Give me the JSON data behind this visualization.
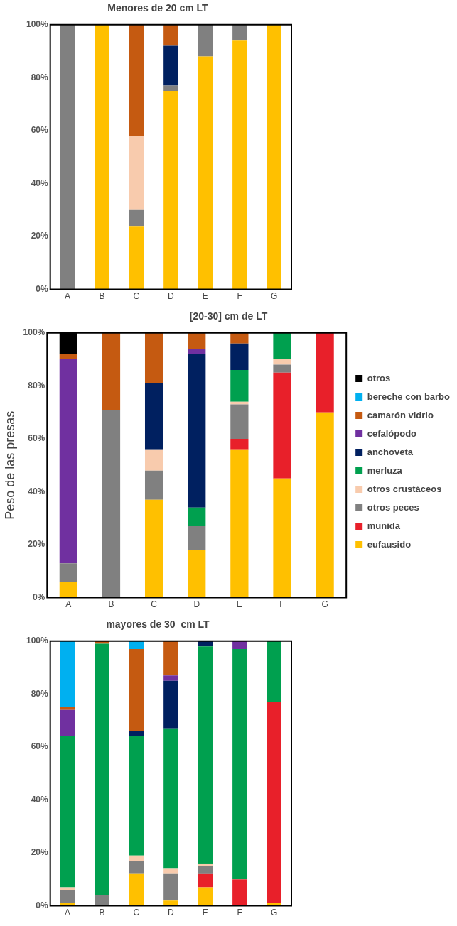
{
  "chart_data": [
    {
      "type": "bar",
      "title": "Menores de 20 cm LT",
      "stacked": true,
      "categories": [
        "A",
        "B",
        "C",
        "D",
        "E",
        "F",
        "G"
      ],
      "ylim": [
        0,
        100
      ],
      "yticks": [
        {
          "value": 0,
          "label": "0%"
        },
        {
          "value": 20,
          "label": "20%"
        },
        {
          "value": 40,
          "label": "40%"
        },
        {
          "value": 60,
          "label": "60%"
        },
        {
          "value": 80,
          "label": "80%"
        },
        {
          "value": 100,
          "label": "100%"
        }
      ],
      "grid": false,
      "legend": false,
      "series": [
        {
          "color": "#ffc000",
          "values": [
            0,
            100,
            24,
            75,
            88,
            94,
            100
          ]
        },
        {
          "color": "#e8202a",
          "values": [
            0,
            0,
            0,
            0,
            0,
            0,
            0
          ]
        },
        {
          "color": "#808080",
          "values": [
            100,
            0,
            6,
            2,
            12,
            6,
            0
          ]
        },
        {
          "color": "#f8cbad",
          "values": [
            0,
            0,
            28,
            0,
            0,
            0,
            0
          ]
        },
        {
          "color": "#00a04f",
          "values": [
            0,
            0,
            0,
            0,
            0,
            0,
            0
          ]
        },
        {
          "color": "#002060",
          "values": [
            0,
            0,
            0,
            15,
            0,
            0,
            0
          ]
        },
        {
          "color": "#7030a0",
          "values": [
            0,
            0,
            0,
            0,
            0,
            0,
            0
          ]
        },
        {
          "color": "#c55a11",
          "values": [
            0,
            0,
            42,
            8,
            0,
            0,
            0
          ]
        },
        {
          "color": "#00b0f0",
          "values": [
            0,
            0,
            0,
            0,
            0,
            0,
            0
          ]
        },
        {
          "color": "#000000",
          "values": [
            0,
            0,
            0,
            0,
            0,
            0,
            0
          ]
        }
      ]
    },
    {
      "type": "bar",
      "title": "[20-30] cm de LT",
      "ylabel": "Peso de las presas",
      "stacked": true,
      "categories": [
        "A",
        "B",
        "C",
        "D",
        "E",
        "F",
        "G"
      ],
      "ylim": [
        0,
        100
      ],
      "yticks": [
        {
          "value": 0,
          "label": "0%"
        },
        {
          "value": 20,
          "label": "20%"
        },
        {
          "value": 40,
          "label": "40%"
        },
        {
          "value": 60,
          "label": "60%"
        },
        {
          "value": 80,
          "label": "80%"
        },
        {
          "value": 100,
          "label": "100%"
        }
      ],
      "grid": false,
      "legend": "right",
      "series": [
        {
          "name": "eufausido",
          "color": "#ffc000",
          "values": [
            6,
            0,
            37,
            18,
            56,
            45,
            70
          ]
        },
        {
          "name": "munida",
          "color": "#e8202a",
          "values": [
            0,
            0,
            0,
            0,
            4,
            40,
            30
          ]
        },
        {
          "name": "otros peces",
          "color": "#808080",
          "values": [
            7,
            71,
            11,
            9,
            13,
            3,
            0
          ]
        },
        {
          "name": "otros crustáceos",
          "color": "#f8cbad",
          "values": [
            0,
            0,
            8,
            0,
            1,
            2,
            0
          ]
        },
        {
          "name": "merluza",
          "color": "#00a04f",
          "values": [
            0,
            0,
            0,
            7,
            12,
            10,
            0
          ]
        },
        {
          "name": "anchoveta",
          "color": "#002060",
          "values": [
            0,
            0,
            25,
            58,
            10,
            0,
            0
          ]
        },
        {
          "name": "cefalópodo",
          "color": "#7030a0",
          "values": [
            77,
            0,
            0,
            2,
            0,
            0,
            0
          ]
        },
        {
          "name": "camarón vidrio",
          "color": "#c55a11",
          "values": [
            2,
            29,
            19,
            6,
            4,
            0,
            0
          ]
        },
        {
          "name": "bereche con barbo",
          "color": "#00b0f0",
          "values": [
            0,
            0,
            0,
            0,
            0,
            0,
            0
          ]
        },
        {
          "name": "otros",
          "color": "#000000",
          "values": [
            8,
            0,
            0,
            0,
            0,
            0,
            0
          ]
        }
      ]
    },
    {
      "type": "bar",
      "title": "mayores de 30  cm LT",
      "stacked": true,
      "categories": [
        "A",
        "B",
        "C",
        "D",
        "E",
        "F",
        "G"
      ],
      "ylim": [
        0,
        100
      ],
      "yticks": [
        {
          "value": 0,
          "label": "0%"
        },
        {
          "value": 20,
          "label": "20%"
        },
        {
          "value": 40,
          "label": "40%"
        },
        {
          "value": 60,
          "label": "60%"
        },
        {
          "value": 80,
          "label": "80%"
        },
        {
          "value": 100,
          "label": "100%"
        }
      ],
      "grid": false,
      "legend": false,
      "series": [
        {
          "color": "#ffc000",
          "values": [
            1,
            0,
            12,
            2,
            7,
            0,
            1
          ]
        },
        {
          "color": "#e8202a",
          "values": [
            0,
            0,
            0,
            0,
            5,
            10,
            76
          ]
        },
        {
          "color": "#808080",
          "values": [
            5,
            4,
            5,
            10,
            3,
            0,
            0
          ]
        },
        {
          "color": "#f8cbad",
          "values": [
            1,
            0,
            2,
            2,
            1,
            0,
            0
          ]
        },
        {
          "color": "#00a04f",
          "values": [
            57,
            95,
            45,
            53,
            82,
            87,
            23
          ]
        },
        {
          "color": "#002060",
          "values": [
            0,
            0,
            2,
            18,
            2,
            0,
            0
          ]
        },
        {
          "color": "#7030a0",
          "values": [
            10,
            0,
            0,
            2,
            0,
            3,
            0
          ]
        },
        {
          "color": "#c55a11",
          "values": [
            1,
            1,
            31,
            13,
            0,
            0,
            0
          ]
        },
        {
          "color": "#00b0f0",
          "values": [
            25,
            0,
            3,
            0,
            0,
            0,
            0
          ]
        },
        {
          "color": "#000000",
          "values": [
            0,
            0,
            0,
            0,
            0,
            0,
            0
          ]
        }
      ]
    }
  ]
}
